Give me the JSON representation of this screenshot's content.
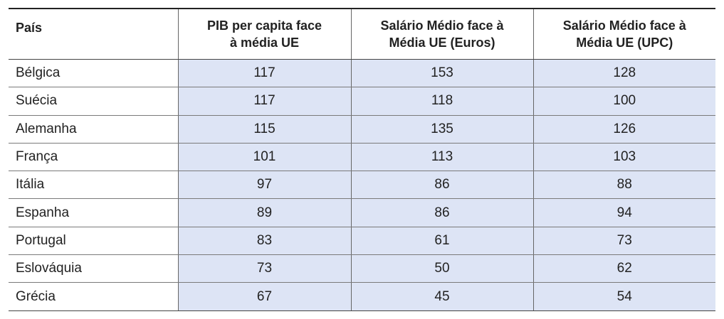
{
  "table": {
    "headers": {
      "country": "País",
      "gdp": "PIB per capita face à média UE",
      "salary_euros": "Salário Médio face à Média UE (Euros)",
      "salary_upc": "Salário Médio face à Média UE (UPC)"
    },
    "rows": [
      {
        "country": "Bélgica",
        "gdp": "117",
        "salary_euros": "153",
        "salary_upc": "128"
      },
      {
        "country": "Suécia",
        "gdp": "117",
        "salary_euros": "118",
        "salary_upc": "100"
      },
      {
        "country": "Alemanha",
        "gdp": "115",
        "salary_euros": "135",
        "salary_upc": "126"
      },
      {
        "country": "França",
        "gdp": "101",
        "salary_euros": "113",
        "salary_upc": "103"
      },
      {
        "country": "Itália",
        "gdp": "97",
        "salary_euros": "86",
        "salary_upc": "88"
      },
      {
        "country": "Espanha",
        "gdp": "89",
        "salary_euros": "86",
        "salary_upc": "94"
      },
      {
        "country": "Portugal",
        "gdp": "83",
        "salary_euros": "61",
        "salary_upc": "73"
      },
      {
        "country": "Eslováquia",
        "gdp": "73",
        "salary_euros": "50",
        "salary_upc": "62"
      },
      {
        "country": "Grécia",
        "gdp": "67",
        "salary_euros": "45",
        "salary_upc": "54"
      }
    ]
  },
  "colors": {
    "cell_fill": "#dde4f5",
    "rule": "#222222"
  }
}
